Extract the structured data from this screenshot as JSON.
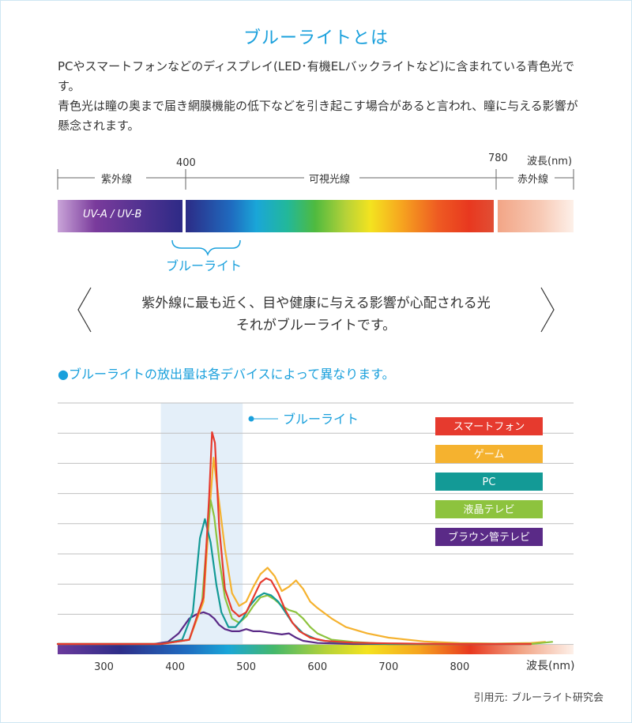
{
  "title": "ブルーライトとは",
  "intro": {
    "para1": "PCやスマートフォンなどのディスプレイ(LED･有機ELバックライトなど)に含まれている青色光です。",
    "para2": "青色光は瞳の奥まで届き網膜機能の低下などを引き起こす場合があると言われ、瞳に与える影響が懸念されます。"
  },
  "spectrum": {
    "unit": "波長(nm)",
    "mark_400": "400",
    "mark_780": "780",
    "uv_label": "紫外線",
    "visible_label": "可視光線",
    "ir_label": "赤外線",
    "uv_band_text": "UV-A / UV-B",
    "blue_light_label": "ブルーライト"
  },
  "quote": {
    "line1": "紫外線に最も近く、目や健康に与える影響が心配される光",
    "line2": "それがブルーライトです。"
  },
  "section_heading": "●ブルーライトの放出量は各デバイスによって異なります。",
  "chart_data": {
    "type": "line",
    "x_label": "波長(nm)",
    "x_ticks": [
      "300",
      "400",
      "500",
      "600",
      "700",
      "800"
    ],
    "xlim": [
      235,
      960
    ],
    "ylim": [
      0,
      1
    ],
    "grid": true,
    "highlight": {
      "label": "ブルーライト",
      "range": [
        380,
        495
      ]
    },
    "legend_position": "top-right",
    "series": [
      {
        "name": "スマートフォン",
        "color": "#e63a2e",
        "x": [
          235,
          380,
          420,
          440,
          448,
          452,
          456,
          462,
          470,
          480,
          490,
          500,
          510,
          520,
          528,
          535,
          545,
          555,
          565,
          575,
          590,
          610,
          630,
          650,
          700,
          750,
          800,
          850,
          900
        ],
        "y": [
          0,
          0,
          0.02,
          0.22,
          0.7,
          1.0,
          0.95,
          0.55,
          0.26,
          0.16,
          0.13,
          0.15,
          0.22,
          0.29,
          0.31,
          0.3,
          0.24,
          0.16,
          0.1,
          0.06,
          0.03,
          0.015,
          0.01,
          0.006,
          0.003,
          0.001,
          0,
          0,
          0
        ]
      },
      {
        "name": "ゲーム",
        "color": "#f5b22f",
        "x": [
          235,
          380,
          420,
          440,
          448,
          454,
          460,
          470,
          480,
          490,
          500,
          510,
          520,
          530,
          540,
          550,
          560,
          570,
          580,
          590,
          600,
          620,
          640,
          670,
          700,
          750,
          800,
          850,
          900,
          920
        ],
        "y": [
          0,
          0,
          0.02,
          0.2,
          0.6,
          0.88,
          0.72,
          0.45,
          0.24,
          0.18,
          0.2,
          0.27,
          0.33,
          0.36,
          0.32,
          0.25,
          0.27,
          0.3,
          0.26,
          0.2,
          0.17,
          0.12,
          0.08,
          0.05,
          0.03,
          0.012,
          0.004,
          0.002,
          0.005,
          0.01
        ]
      },
      {
        "name": "PC",
        "color": "#139a96",
        "x": [
          235,
          380,
          410,
          425,
          435,
          442,
          450,
          458,
          465,
          475,
          485,
          495,
          505,
          515,
          525,
          535,
          545,
          555,
          565,
          580,
          600,
          620,
          650,
          700,
          900
        ],
        "y": [
          0,
          0,
          0.02,
          0.15,
          0.5,
          0.59,
          0.48,
          0.28,
          0.15,
          0.08,
          0.08,
          0.12,
          0.18,
          0.22,
          0.24,
          0.23,
          0.2,
          0.15,
          0.1,
          0.05,
          0.02,
          0.01,
          0.005,
          0,
          0
        ]
      },
      {
        "name": "液晶テレビ",
        "color": "#8dc33e",
        "x": [
          235,
          380,
          420,
          438,
          445,
          450,
          455,
          462,
          470,
          480,
          490,
          500,
          510,
          520,
          530,
          540,
          550,
          560,
          570,
          580,
          590,
          600,
          620,
          650,
          700,
          900,
          930
        ],
        "y": [
          0,
          0,
          0.02,
          0.2,
          0.5,
          0.68,
          0.6,
          0.4,
          0.22,
          0.12,
          0.1,
          0.13,
          0.18,
          0.22,
          0.23,
          0.21,
          0.18,
          0.16,
          0.15,
          0.12,
          0.08,
          0.05,
          0.02,
          0.01,
          0,
          0,
          0.01
        ]
      },
      {
        "name": "ブラウン管テレビ",
        "color": "#5a2a87",
        "x": [
          235,
          370,
          390,
          405,
          420,
          430,
          440,
          448,
          455,
          462,
          470,
          480,
          490,
          500,
          510,
          520,
          530,
          540,
          550,
          560,
          570,
          580,
          600,
          650,
          900
        ],
        "y": [
          0,
          0,
          0.01,
          0.05,
          0.12,
          0.14,
          0.15,
          0.14,
          0.12,
          0.09,
          0.07,
          0.06,
          0.06,
          0.07,
          0.06,
          0.06,
          0.055,
          0.05,
          0.045,
          0.05,
          0.03,
          0.015,
          0.005,
          0,
          0
        ]
      }
    ]
  },
  "citation": "引用元: ブルーライト研究会"
}
